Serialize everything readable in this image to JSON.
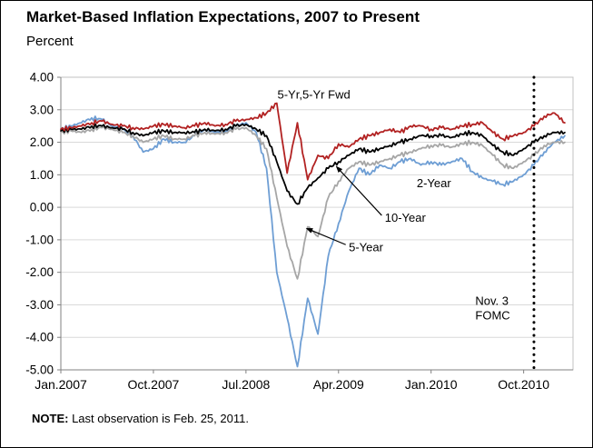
{
  "title": "Market-Based Inflation Expectations, 2007 to Present",
  "subtitle": "Percent",
  "note": {
    "label": "NOTE:",
    "text": " Last observation is Feb. 25, 2011."
  },
  "chart_data": {
    "type": "line",
    "title": "Market-Based Inflation Expectations, 2007 to Present",
    "ylabel": "Percent",
    "ylim": [
      -5,
      4
    ],
    "y_ticks": [
      "4.00",
      "3.00",
      "2.00",
      "1.00",
      "0.00",
      "-1.00",
      "-2.00",
      "-3.00",
      "-4.00",
      "-5.00"
    ],
    "x_tick_labels": [
      "Jan.2007",
      "Oct.2007",
      "Jul.2008",
      "Apr.2009",
      "Jan.2010",
      "Oct.2010"
    ],
    "x_tick_months": [
      0,
      9,
      18,
      27,
      36,
      45
    ],
    "x_months_total": 49.8,
    "x_start": "Jan 2007",
    "x_end": "Feb 25, 2011",
    "grid": true,
    "grid_color": "#d9d9d9",
    "axis_color": "#808080",
    "box_color": "#c0c0c0",
    "series": [
      {
        "name": "5-Yr,5-Yr Fwd",
        "color": "#b22222",
        "values": [
          2.4,
          2.45,
          2.5,
          2.6,
          2.65,
          2.55,
          2.5,
          2.45,
          2.4,
          2.5,
          2.55,
          2.5,
          2.45,
          2.5,
          2.6,
          2.5,
          2.55,
          2.65,
          2.7,
          2.75,
          2.9,
          3.2,
          1.05,
          2.6,
          0.85,
          1.6,
          1.5,
          1.95,
          1.85,
          2.1,
          2.2,
          2.3,
          2.4,
          2.3,
          2.5,
          2.5,
          2.4,
          2.45,
          2.4,
          2.5,
          2.55,
          2.6,
          2.3,
          2.1,
          2.2,
          2.3,
          2.5,
          2.8,
          2.9,
          2.6
        ]
      },
      {
        "name": "10-Year",
        "color": "#000000",
        "values": [
          2.35,
          2.4,
          2.4,
          2.5,
          2.5,
          2.45,
          2.4,
          2.3,
          2.2,
          2.3,
          2.35,
          2.3,
          2.3,
          2.3,
          2.4,
          2.35,
          2.4,
          2.5,
          2.55,
          2.4,
          2.2,
          1.4,
          0.5,
          0.1,
          0.6,
          0.9,
          1.2,
          1.4,
          1.6,
          1.8,
          1.7,
          1.8,
          1.9,
          2.0,
          2.1,
          2.2,
          2.2,
          2.2,
          2.15,
          2.25,
          2.3,
          2.2,
          1.9,
          1.7,
          1.6,
          1.8,
          2.0,
          2.2,
          2.3,
          2.3
        ]
      },
      {
        "name": "5-Year",
        "color": "#a6a6a6",
        "values": [
          2.3,
          2.35,
          2.3,
          2.4,
          2.45,
          2.4,
          2.3,
          2.2,
          2.0,
          2.1,
          2.2,
          2.1,
          2.1,
          2.2,
          2.3,
          2.25,
          2.3,
          2.4,
          2.45,
          2.2,
          1.8,
          0.3,
          -1.2,
          -2.2,
          -0.6,
          -0.9,
          0.3,
          0.8,
          1.2,
          1.4,
          1.3,
          1.4,
          1.5,
          1.6,
          1.7,
          1.8,
          1.9,
          1.9,
          1.85,
          1.95,
          2.0,
          1.9,
          1.6,
          1.3,
          1.2,
          1.4,
          1.6,
          1.9,
          2.0,
          2.0
        ]
      },
      {
        "name": "2-Year",
        "color": "#6e9ed4",
        "values": [
          2.4,
          2.5,
          2.6,
          2.75,
          2.7,
          2.5,
          2.4,
          2.2,
          1.7,
          1.8,
          2.1,
          2.0,
          2.0,
          2.2,
          2.4,
          2.3,
          2.35,
          2.5,
          2.6,
          2.3,
          1.2,
          -2.0,
          -3.4,
          -4.9,
          -2.8,
          -3.9,
          -1.5,
          -0.5,
          0.5,
          1.2,
          1.0,
          1.3,
          1.2,
          1.4,
          1.5,
          1.3,
          1.4,
          1.3,
          1.4,
          1.5,
          1.1,
          0.9,
          0.8,
          0.7,
          0.8,
          1.0,
          1.3,
          1.7,
          2.0,
          2.2
        ]
      }
    ],
    "annotations": [
      {
        "lines": [
          "5-Yr,5-Yr Fwd"
        ],
        "month": 24.6,
        "value": 3.35,
        "anchor": "middle"
      },
      {
        "lines": [
          "2-Year"
        ],
        "month": 34.6,
        "value": 0.62,
        "anchor": "start"
      },
      {
        "lines": [
          "10-Year"
        ],
        "month": 31.5,
        "value": -0.45,
        "anchor": "start",
        "arrow": {
          "from_month": 31.2,
          "from_value": -0.25,
          "to_month": 26.8,
          "to_value": 1.25
        }
      },
      {
        "lines": [
          "5-Year"
        ],
        "month": 28.0,
        "value": -1.35,
        "anchor": "start",
        "arrow": {
          "from_month": 27.7,
          "from_value": -1.15,
          "to_month": 23.9,
          "to_value": -0.65
        }
      },
      {
        "lines": [
          "Nov. 3",
          "FOMC"
        ],
        "month": 40.3,
        "value": -3.0,
        "anchor": "start"
      }
    ],
    "event_line": {
      "label": "Nov. 3 FOMC",
      "month": 46.0
    }
  }
}
